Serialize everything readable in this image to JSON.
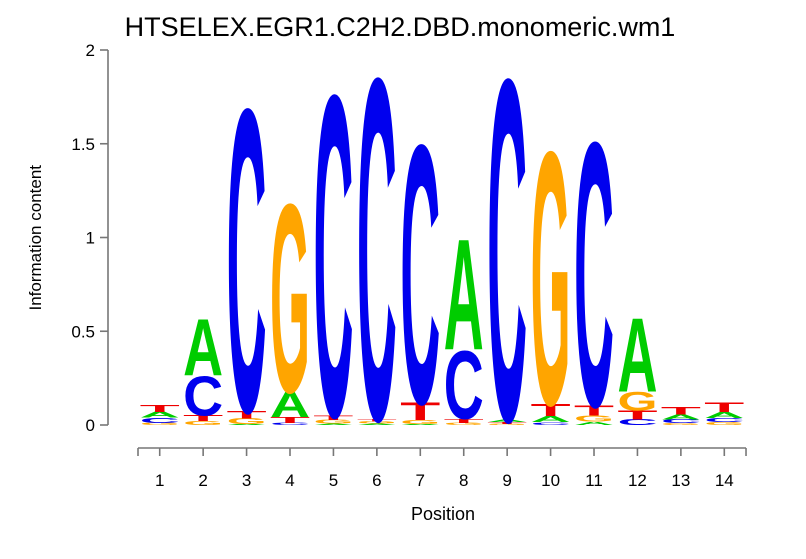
{
  "chart_data": {
    "type": "sequence_logo",
    "title": "HTSELEX.EGR1.C2H2.DBD.monomeric.wm1",
    "xlabel": "Position",
    "ylabel": "Information content",
    "ylim": [
      0,
      2
    ],
    "yticks": [
      0,
      0.5,
      1,
      1.5,
      2
    ],
    "ytick_labels": [
      "0",
      "0.5",
      "1",
      "1.5",
      "2"
    ],
    "positions": [
      "1",
      "2",
      "3",
      "4",
      "5",
      "6",
      "7",
      "8",
      "9",
      "10",
      "11",
      "12",
      "13",
      "14"
    ],
    "legend": "none",
    "grid": false,
    "base_colors": {
      "A": "#00CC00",
      "C": "#0000EE",
      "G": "#FFA500",
      "T": "#EE0000"
    },
    "stacks": [
      [
        {
          "base": "G",
          "ic": 0.012
        },
        {
          "base": "C",
          "ic": 0.028
        },
        {
          "base": "A",
          "ic": 0.03
        },
        {
          "base": "T",
          "ic": 0.037
        }
      ],
      [
        {
          "base": "G",
          "ic": 0.022
        },
        {
          "base": "T",
          "ic": 0.03
        },
        {
          "base": "C",
          "ic": 0.215
        },
        {
          "base": "A",
          "ic": 0.305
        }
      ],
      [
        {
          "base": "A",
          "ic": 0.005
        },
        {
          "base": "G",
          "ic": 0.03
        },
        {
          "base": "T",
          "ic": 0.042
        },
        {
          "base": "C",
          "ic": 1.64
        }
      ],
      [
        {
          "base": "C",
          "ic": 0.012
        },
        {
          "base": "T",
          "ic": 0.032
        },
        {
          "base": "A",
          "ic": 0.135
        },
        {
          "base": "G",
          "ic": 1.02
        }
      ],
      [
        {
          "base": "A",
          "ic": 0.008
        },
        {
          "base": "G",
          "ic": 0.02
        },
        {
          "base": "T",
          "ic": 0.025
        },
        {
          "base": "C",
          "ic": 1.74
        }
      ],
      [
        {
          "base": "A",
          "ic": 0.008
        },
        {
          "base": "G",
          "ic": 0.012
        },
        {
          "base": "T",
          "ic": 0.015
        },
        {
          "base": "C",
          "ic": 1.85
        }
      ],
      [
        {
          "base": "A",
          "ic": 0.006
        },
        {
          "base": "G",
          "ic": 0.02
        },
        {
          "base": "T",
          "ic": 0.095
        },
        {
          "base": "C",
          "ic": 1.4
        }
      ],
      [
        {
          "base": "G",
          "ic": 0.012
        },
        {
          "base": "T",
          "ic": 0.022
        },
        {
          "base": "C",
          "ic": 0.37
        },
        {
          "base": "A",
          "ic": 0.6
        }
      ],
      [
        {
          "base": "G",
          "ic": 0.006
        },
        {
          "base": "T",
          "ic": 0.01
        },
        {
          "base": "A",
          "ic": 0.014
        },
        {
          "base": "C",
          "ic": 1.85
        }
      ],
      [
        {
          "base": "C",
          "ic": 0.015
        },
        {
          "base": "A",
          "ic": 0.032
        },
        {
          "base": "T",
          "ic": 0.068
        },
        {
          "base": "G",
          "ic": 1.37
        }
      ],
      [
        {
          "base": "A",
          "ic": 0.018
        },
        {
          "base": "G",
          "ic": 0.032
        },
        {
          "base": "T",
          "ic": 0.056
        },
        {
          "base": "C",
          "ic": 1.43
        }
      ],
      [
        {
          "base": "C",
          "ic": 0.03
        },
        {
          "base": "T",
          "ic": 0.048
        },
        {
          "base": "G",
          "ic": 0.102
        },
        {
          "base": "A",
          "ic": 0.4
        }
      ],
      [
        {
          "base": "G",
          "ic": 0.01
        },
        {
          "base": "C",
          "ic": 0.02
        },
        {
          "base": "A",
          "ic": 0.026
        },
        {
          "base": "T",
          "ic": 0.043
        }
      ],
      [
        {
          "base": "G",
          "ic": 0.016
        },
        {
          "base": "C",
          "ic": 0.021
        },
        {
          "base": "A",
          "ic": 0.032
        },
        {
          "base": "T",
          "ic": 0.054
        }
      ]
    ]
  }
}
